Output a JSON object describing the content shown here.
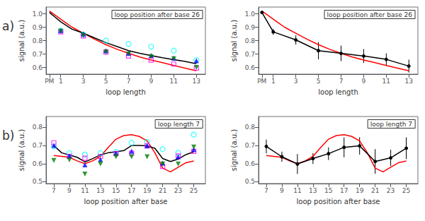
{
  "chart_data": [
    {
      "type": "line",
      "panel_label": "a)",
      "xlabel": "loop length",
      "ylabel": "signal (a.u.)",
      "annotation": "loop position after base 26",
      "xlim": [
        -0.3,
        13.8
      ],
      "ylim": [
        0.55,
        1.05
      ],
      "xticks": [
        {
          "value": 0,
          "label": "PM"
        },
        1,
        3,
        5,
        7,
        9,
        11,
        13
      ],
      "yticks": [
        0.6,
        0.7,
        0.8,
        0.9,
        {
          "value": 1.0,
          "label": "1.0"
        }
      ],
      "grid": false,
      "series": [
        {
          "type": "line",
          "color": "red",
          "x": [
            0,
            0.5,
            1,
            1.5,
            2,
            3,
            4,
            5,
            6,
            7,
            8,
            9,
            10,
            11,
            12,
            13
          ],
          "values": [
            1.02,
            0.99,
            0.96,
            0.93,
            0.9,
            0.855,
            0.81,
            0.77,
            0.735,
            0.705,
            0.678,
            0.655,
            0.635,
            0.615,
            0.595,
            0.575
          ]
        },
        {
          "type": "line",
          "color": "black",
          "x": [
            0,
            0.5,
            1,
            2,
            3,
            4,
            5,
            6,
            7,
            8,
            9,
            10,
            11,
            12,
            13
          ],
          "values": [
            1.01,
            0.975,
            0.94,
            0.885,
            0.855,
            0.82,
            0.785,
            0.755,
            0.725,
            0.705,
            0.688,
            0.672,
            0.658,
            0.645,
            0.628
          ]
        },
        {
          "type": "scatter",
          "color": "cyan",
          "marker": "circle_open",
          "x": [
            1,
            3,
            5,
            7,
            9,
            11,
            13
          ],
          "values": [
            0.875,
            0.845,
            0.8,
            0.775,
            0.755,
            0.725,
            0.655
          ]
        },
        {
          "type": "scatter",
          "color": "magenta",
          "marker": "square_open",
          "x": [
            1,
            3,
            5,
            7,
            9,
            11,
            13
          ],
          "values": [
            0.865,
            0.835,
            0.715,
            0.685,
            0.655,
            0.625,
            0.595
          ]
        },
        {
          "type": "scatter",
          "color": "blue",
          "marker": "triangle_up",
          "x": [
            1,
            3,
            5,
            7,
            9,
            11,
            13
          ],
          "values": [
            0.875,
            0.85,
            0.725,
            0.705,
            0.69,
            0.67,
            0.65
          ]
        },
        {
          "type": "scatter",
          "color": "green",
          "marker": "triangle_down",
          "x": [
            1,
            3,
            5,
            7,
            9,
            11,
            13
          ],
          "values": [
            0.87,
            0.84,
            0.715,
            0.7,
            0.68,
            0.665,
            0.6
          ]
        }
      ]
    },
    {
      "type": "line",
      "xlabel": "loop length",
      "ylabel": "signal (a.u.)",
      "annotation": "loop position after base 26",
      "xlim": [
        -0.3,
        13.8
      ],
      "ylim": [
        0.55,
        1.05
      ],
      "xticks": [
        {
          "value": 0,
          "label": "PM"
        },
        1,
        3,
        5,
        7,
        9,
        11,
        13
      ],
      "yticks": [
        0.6,
        0.7,
        0.8,
        0.9,
        {
          "value": 1.0,
          "label": "1.0"
        }
      ],
      "grid": false,
      "series": [
        {
          "type": "line",
          "color": "red",
          "x": [
            0,
            0.5,
            1,
            1.5,
            2,
            3,
            4,
            5,
            6,
            7,
            8,
            9,
            10,
            11,
            12,
            13
          ],
          "values": [
            1.02,
            0.99,
            0.96,
            0.93,
            0.9,
            0.855,
            0.81,
            0.77,
            0.735,
            0.705,
            0.678,
            0.655,
            0.635,
            0.615,
            0.595,
            0.575
          ]
        },
        {
          "type": "line",
          "color": "black",
          "marker": "circle",
          "x": [
            0,
            1,
            3,
            5,
            7,
            9,
            11,
            13
          ],
          "values": [
            1.01,
            0.865,
            0.805,
            0.725,
            0.705,
            0.685,
            0.66,
            0.61
          ],
          "errors": [
            0.005,
            0.022,
            0.035,
            0.065,
            0.058,
            0.052,
            0.045,
            0.048
          ]
        }
      ]
    },
    {
      "type": "line",
      "panel_label": "b)",
      "xlabel": "loop position after base",
      "ylabel": "signal (a.u.)",
      "annotation": "loop length 7",
      "xlim": [
        6.0,
        26.5
      ],
      "ylim": [
        0.49,
        0.86
      ],
      "xticks": [
        7,
        9,
        11,
        13,
        15,
        17,
        19,
        21,
        23,
        25
      ],
      "yticks": [
        0.5,
        0.6,
        0.7,
        0.8
      ],
      "grid": false,
      "series": [
        {
          "type": "line",
          "color": "red",
          "x": [
            7,
            8,
            9,
            10,
            11,
            12,
            13,
            14,
            15,
            16,
            17,
            18,
            19,
            20,
            21,
            22,
            23,
            24,
            25
          ],
          "values": [
            0.645,
            0.64,
            0.635,
            0.615,
            0.6,
            0.615,
            0.64,
            0.69,
            0.735,
            0.755,
            0.76,
            0.75,
            0.725,
            0.66,
            0.575,
            0.555,
            0.58,
            0.605,
            0.615
          ]
        },
        {
          "type": "line",
          "color": "black",
          "x": [
            7,
            8,
            9,
            10,
            11,
            12,
            13,
            14,
            15,
            16,
            17,
            18,
            19,
            20,
            21,
            22,
            23,
            24,
            25
          ],
          "values": [
            0.7,
            0.66,
            0.648,
            0.635,
            0.61,
            0.628,
            0.648,
            0.66,
            0.665,
            0.672,
            0.7,
            0.7,
            0.698,
            0.685,
            0.628,
            0.612,
            0.625,
            0.65,
            0.665
          ]
        },
        {
          "type": "scatter",
          "color": "cyan",
          "marker": "circle_open",
          "x": [
            7,
            9,
            11,
            13,
            15,
            17,
            19,
            21,
            23,
            25
          ],
          "values": [
            0.695,
            0.658,
            0.65,
            0.658,
            0.665,
            0.715,
            0.72,
            0.68,
            0.66,
            0.76
          ]
        },
        {
          "type": "scatter",
          "color": "magenta",
          "marker": "square_open",
          "x": [
            7,
            9,
            11,
            13,
            15,
            17,
            19,
            21,
            23,
            25
          ],
          "values": [
            0.715,
            0.64,
            0.63,
            0.64,
            0.655,
            0.658,
            0.698,
            0.585,
            0.642,
            0.668
          ]
        },
        {
          "type": "scatter",
          "color": "blue",
          "marker": "triangle_up",
          "x": [
            7,
            9,
            11,
            13,
            15,
            17,
            19,
            21,
            23,
            25
          ],
          "values": [
            0.7,
            0.643,
            0.593,
            0.622,
            0.658,
            0.668,
            0.698,
            0.603,
            0.638,
            0.678
          ]
        },
        {
          "type": "scatter",
          "color": "green",
          "marker": "triangle_down",
          "x": [
            7,
            9,
            11,
            13,
            15,
            17,
            19,
            21,
            23,
            25
          ],
          "values": [
            0.618,
            0.62,
            0.543,
            0.598,
            0.638,
            0.638,
            0.638,
            0.598,
            0.598,
            0.692
          ]
        }
      ]
    },
    {
      "type": "line",
      "xlabel": "loop position after base",
      "ylabel": "signal (a.u.)",
      "annotation": "loop length 7",
      "xlim": [
        6.0,
        26.5
      ],
      "ylim": [
        0.49,
        0.86
      ],
      "xticks": [
        7,
        9,
        11,
        13,
        15,
        17,
        19,
        21,
        23,
        25
      ],
      "yticks": [
        0.5,
        0.6,
        0.7,
        0.8
      ],
      "grid": false,
      "series": [
        {
          "type": "line",
          "color": "red",
          "x": [
            7,
            8,
            9,
            10,
            11,
            12,
            13,
            14,
            15,
            16,
            17,
            18,
            19,
            20,
            21,
            22,
            23,
            24,
            25
          ],
          "values": [
            0.645,
            0.64,
            0.635,
            0.615,
            0.6,
            0.615,
            0.64,
            0.69,
            0.735,
            0.755,
            0.76,
            0.75,
            0.725,
            0.66,
            0.575,
            0.555,
            0.58,
            0.605,
            0.615
          ]
        },
        {
          "type": "line",
          "color": "black",
          "marker": "circle",
          "x": [
            7,
            9,
            11,
            13,
            15,
            17,
            19,
            21,
            23,
            25
          ],
          "values": [
            0.695,
            0.638,
            0.598,
            0.628,
            0.655,
            0.69,
            0.698,
            0.612,
            0.632,
            0.685
          ],
          "errors": [
            0.038,
            0.028,
            0.055,
            0.03,
            0.035,
            0.055,
            0.048,
            0.068,
            0.045,
            0.06
          ]
        }
      ]
    }
  ]
}
